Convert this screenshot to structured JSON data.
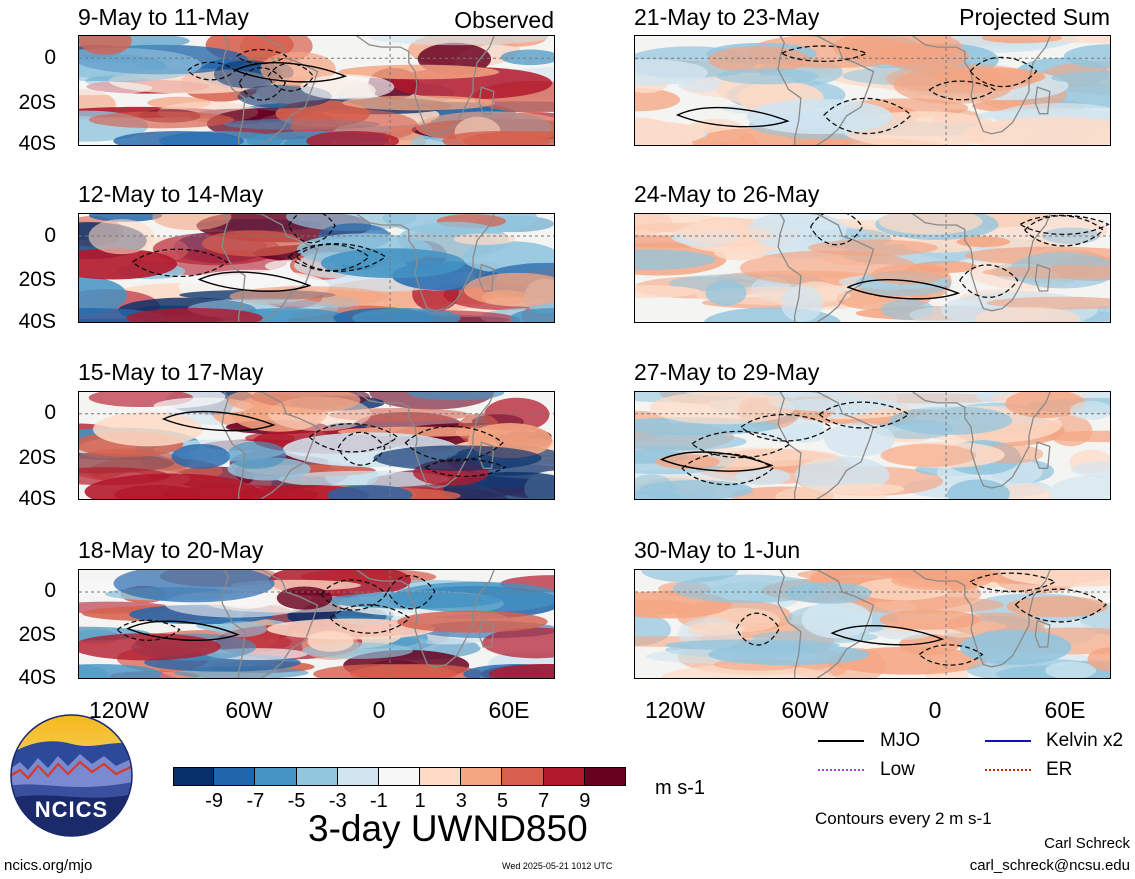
{
  "left_column": {
    "corner_label": "Observed",
    "panels": [
      {
        "title": "9-May to 11-May"
      },
      {
        "title": "12-May to 14-May"
      },
      {
        "title": "15-May to 17-May"
      },
      {
        "title": "18-May to 20-May"
      }
    ]
  },
  "right_column": {
    "corner_label": "Projected Sum",
    "panels": [
      {
        "title": "21-May to 23-May"
      },
      {
        "title": "24-May to 26-May"
      },
      {
        "title": "27-May to 29-May"
      },
      {
        "title": "30-May to 1-Jun"
      }
    ]
  },
  "lat_ticks": [
    "0",
    "20S",
    "40S"
  ],
  "lon_ticks": [
    "120W",
    "60W",
    "0",
    "60E"
  ],
  "colorbar": {
    "colors": [
      "#08306b",
      "#2166ac",
      "#4393c3",
      "#92c5de",
      "#d1e5f0",
      "#f7f7f7",
      "#fddbc7",
      "#f4a582",
      "#d6604d",
      "#b2182b",
      "#67001f"
    ],
    "labels": [
      "-9",
      "-7",
      "-5",
      "-3",
      "-1",
      "1",
      "3",
      "5",
      "7",
      "9"
    ],
    "units": "m s-1"
  },
  "main_title": "3-day UWND850",
  "legend": {
    "items": [
      {
        "label": "MJO",
        "color": "#000000"
      },
      {
        "label": "Kelvin x2",
        "color": "#1010c0"
      },
      {
        "label": "Low",
        "color": "#b040e0"
      },
      {
        "label": "ER",
        "color": "#d02010"
      }
    ],
    "contour_note": "Contours every 2 m s-1"
  },
  "logo": {
    "text": "NCICS"
  },
  "footer": {
    "url": "ncics.org/mjo",
    "timestamp": "Wed 2025-05-21 1012 UTC",
    "author": "Carl Schreck",
    "email": "carl_schreck@ncsu.edu"
  }
}
